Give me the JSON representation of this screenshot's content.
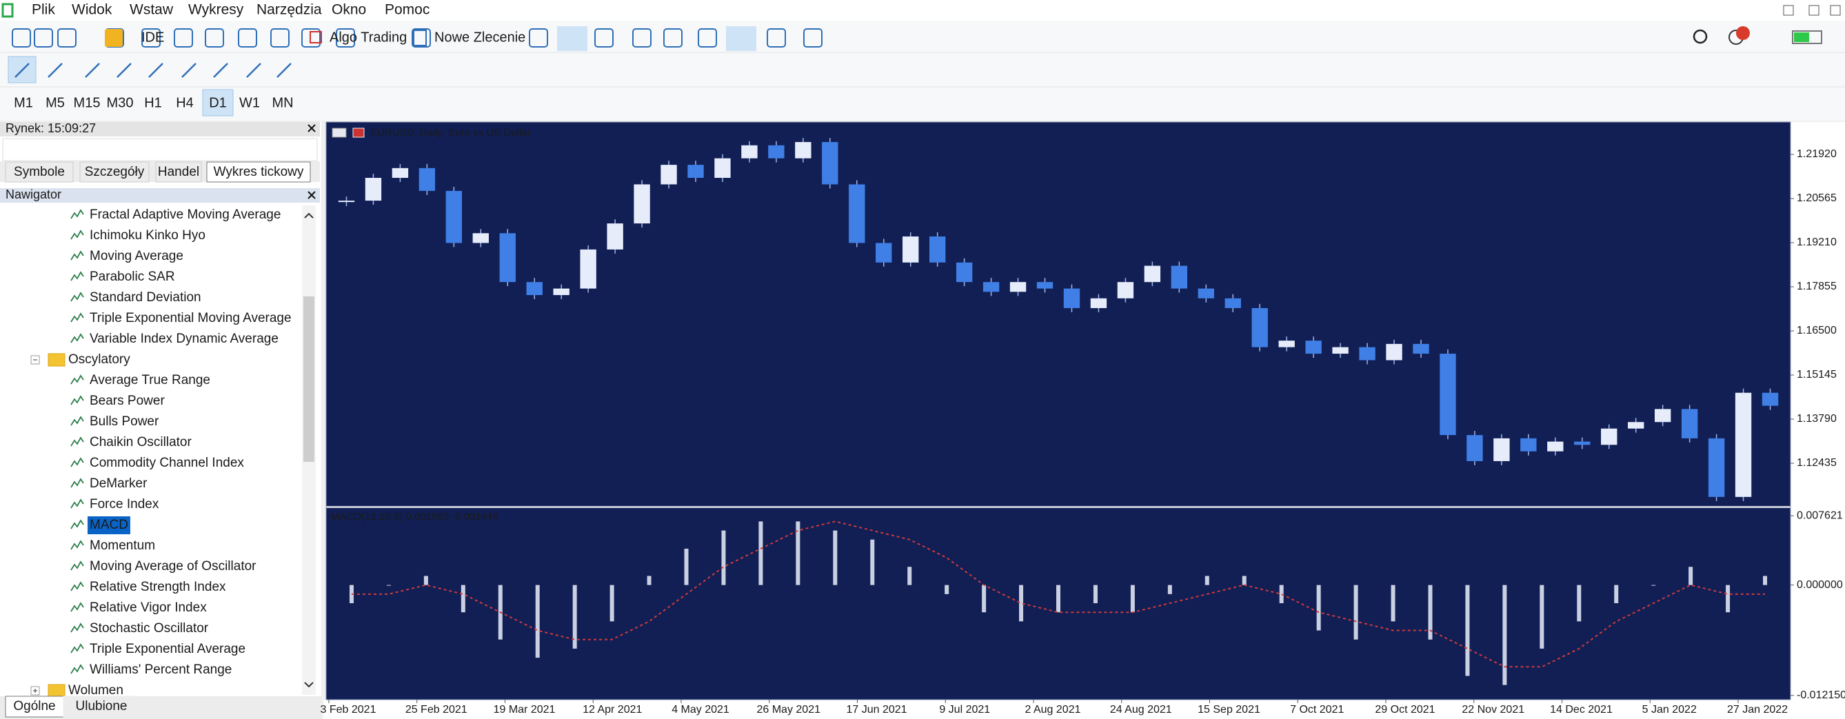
{
  "menu": [
    "Plik",
    "Widok",
    "Wstaw",
    "Wykresy",
    "Narzędzia",
    "Okno",
    "Pomoc"
  ],
  "toolbar": {
    "ide": "IDE",
    "algo_trading": "Algo Trading",
    "new_order": "Nowe Zlecenie"
  },
  "timeframes": {
    "items": [
      "M1",
      "M5",
      "M15",
      "M30",
      "H1",
      "H4",
      "D1",
      "W1",
      "MN"
    ],
    "selected": "D1"
  },
  "market_watch": {
    "title": "Rynek: 15:09:27",
    "tabs": [
      "Symbole",
      "Szczegóły",
      "Handel",
      "Wykres tickowy"
    ],
    "active_tab": "Wykres tickowy"
  },
  "navigator": {
    "title": "Nawigator",
    "items": [
      "Fractal Adaptive Moving Average",
      "Ichimoku Kinko Hyo",
      "Moving Average",
      "Parabolic SAR",
      "Standard Deviation",
      "Triple Exponential Moving Average",
      "Variable Index Dynamic Average"
    ],
    "groups": [
      {
        "label": "Oscylatory",
        "expanded": true,
        "items": [
          "Average True Range",
          "Bears Power",
          "Bulls Power",
          "Chaikin Oscillator",
          "Commodity Channel Index",
          "DeMarker",
          "Force Index",
          "MACD",
          "Momentum",
          "Moving Average of Oscillator",
          "Relative Strength Index",
          "Relative Vigor Index",
          "Stochastic Oscillator",
          "Triple Exponential Average",
          "Williams' Percent Range"
        ],
        "selected": "MACD"
      },
      {
        "label": "Wolumen",
        "expanded": false,
        "items": []
      }
    ],
    "tabs": [
      "Ogólne",
      "Ulubione"
    ],
    "active_tab": "Ogólne"
  },
  "chart": {
    "type": "candlestick",
    "title": "EURUSD, Daily:  Euro vs US Dollar",
    "closes": [
      1.205,
      1.212,
      1.215,
      1.208,
      1.192,
      1.195,
      1.18,
      1.176,
      1.178,
      1.19,
      1.198,
      1.21,
      1.216,
      1.212,
      1.218,
      1.222,
      1.218,
      1.223,
      1.21,
      1.192,
      1.186,
      1.194,
      1.186,
      1.18,
      1.177,
      1.18,
      1.178,
      1.172,
      1.175,
      1.18,
      1.185,
      1.178,
      1.175,
      1.172,
      1.16,
      1.162,
      1.158,
      1.16,
      1.156,
      1.161,
      1.158,
      1.133,
      1.125,
      1.132,
      1.128,
      1.131,
      1.13,
      1.135,
      1.137,
      1.141,
      1.132,
      1.114,
      1.146,
      1.142
    ],
    "colors": {
      "up": "#e6ecfa",
      "down": "#3f7fe6",
      "background": "#111f55"
    },
    "ylim": [
      1.11122,
      1.22915
    ],
    "yticks": [
      {
        "value": 1.2192,
        "label": "1.21920"
      },
      {
        "value": 1.20565,
        "label": "1.20565"
      },
      {
        "value": 1.1921,
        "label": "1.19210"
      },
      {
        "value": 1.17855,
        "label": "1.17855"
      },
      {
        "value": 1.165,
        "label": "1.16500"
      },
      {
        "value": 1.15145,
        "label": "1.15145"
      },
      {
        "value": 1.1379,
        "label": "1.13790"
      },
      {
        "value": 1.12435,
        "label": "1.12435"
      }
    ],
    "dates": [
      "3 Feb 2021",
      "25 Feb 2021",
      "19 Mar 2021",
      "12 Apr 2021",
      "4 May 2021",
      "26 May 2021",
      "17 Jun 2021",
      "9 Jul 2021",
      "2 Aug 2021",
      "24 Aug 2021",
      "15 Sep 2021",
      "7 Oct 2021",
      "29 Oct 2021",
      "22 Nov 2021",
      "14 Dec 2021",
      "5 Jan 2022",
      "27 Jan 2022"
    ],
    "macd": {
      "title": "MACD(12,26,9) 0.001563 -0.001446",
      "histogram": [
        -0.002,
        0.0,
        0.001,
        -0.003,
        -0.006,
        -0.008,
        -0.007,
        -0.004,
        0.001,
        0.004,
        0.006,
        0.007,
        0.007,
        0.006,
        0.005,
        0.002,
        -0.001,
        -0.003,
        -0.004,
        -0.003,
        -0.002,
        -0.003,
        -0.001,
        0.001,
        0.001,
        -0.002,
        -0.005,
        -0.006,
        -0.004,
        -0.006,
        -0.01,
        -0.011,
        -0.007,
        -0.004,
        -0.002,
        0.0,
        0.002,
        -0.003,
        0.001
      ],
      "signal": [
        -0.001,
        -0.001,
        0,
        -0.001,
        -0.003,
        -0.005,
        -0.006,
        -0.006,
        -0.004,
        -0.001,
        0.002,
        0.004,
        0.006,
        0.007,
        0.006,
        0.005,
        0.003,
        0,
        -0.002,
        -0.003,
        -0.003,
        -0.003,
        -0.002,
        -0.001,
        0,
        -0.001,
        -0.003,
        -0.004,
        -0.005,
        -0.005,
        -0.007,
        -0.009,
        -0.009,
        -0.007,
        -0.004,
        -0.002,
        0,
        -0.001,
        -0.001
      ],
      "colors": {
        "histogram": "#c9d0e2",
        "signal": "#d23a3a"
      },
      "ylim": [
        -0.01262,
        0.00847
      ],
      "yticks": [
        {
          "value": 0.007621,
          "label": "0.007621"
        },
        {
          "value": 0,
          "label": "0.000000"
        },
        {
          "value": -0.01215,
          "label": "-0.012150"
        }
      ]
    }
  }
}
